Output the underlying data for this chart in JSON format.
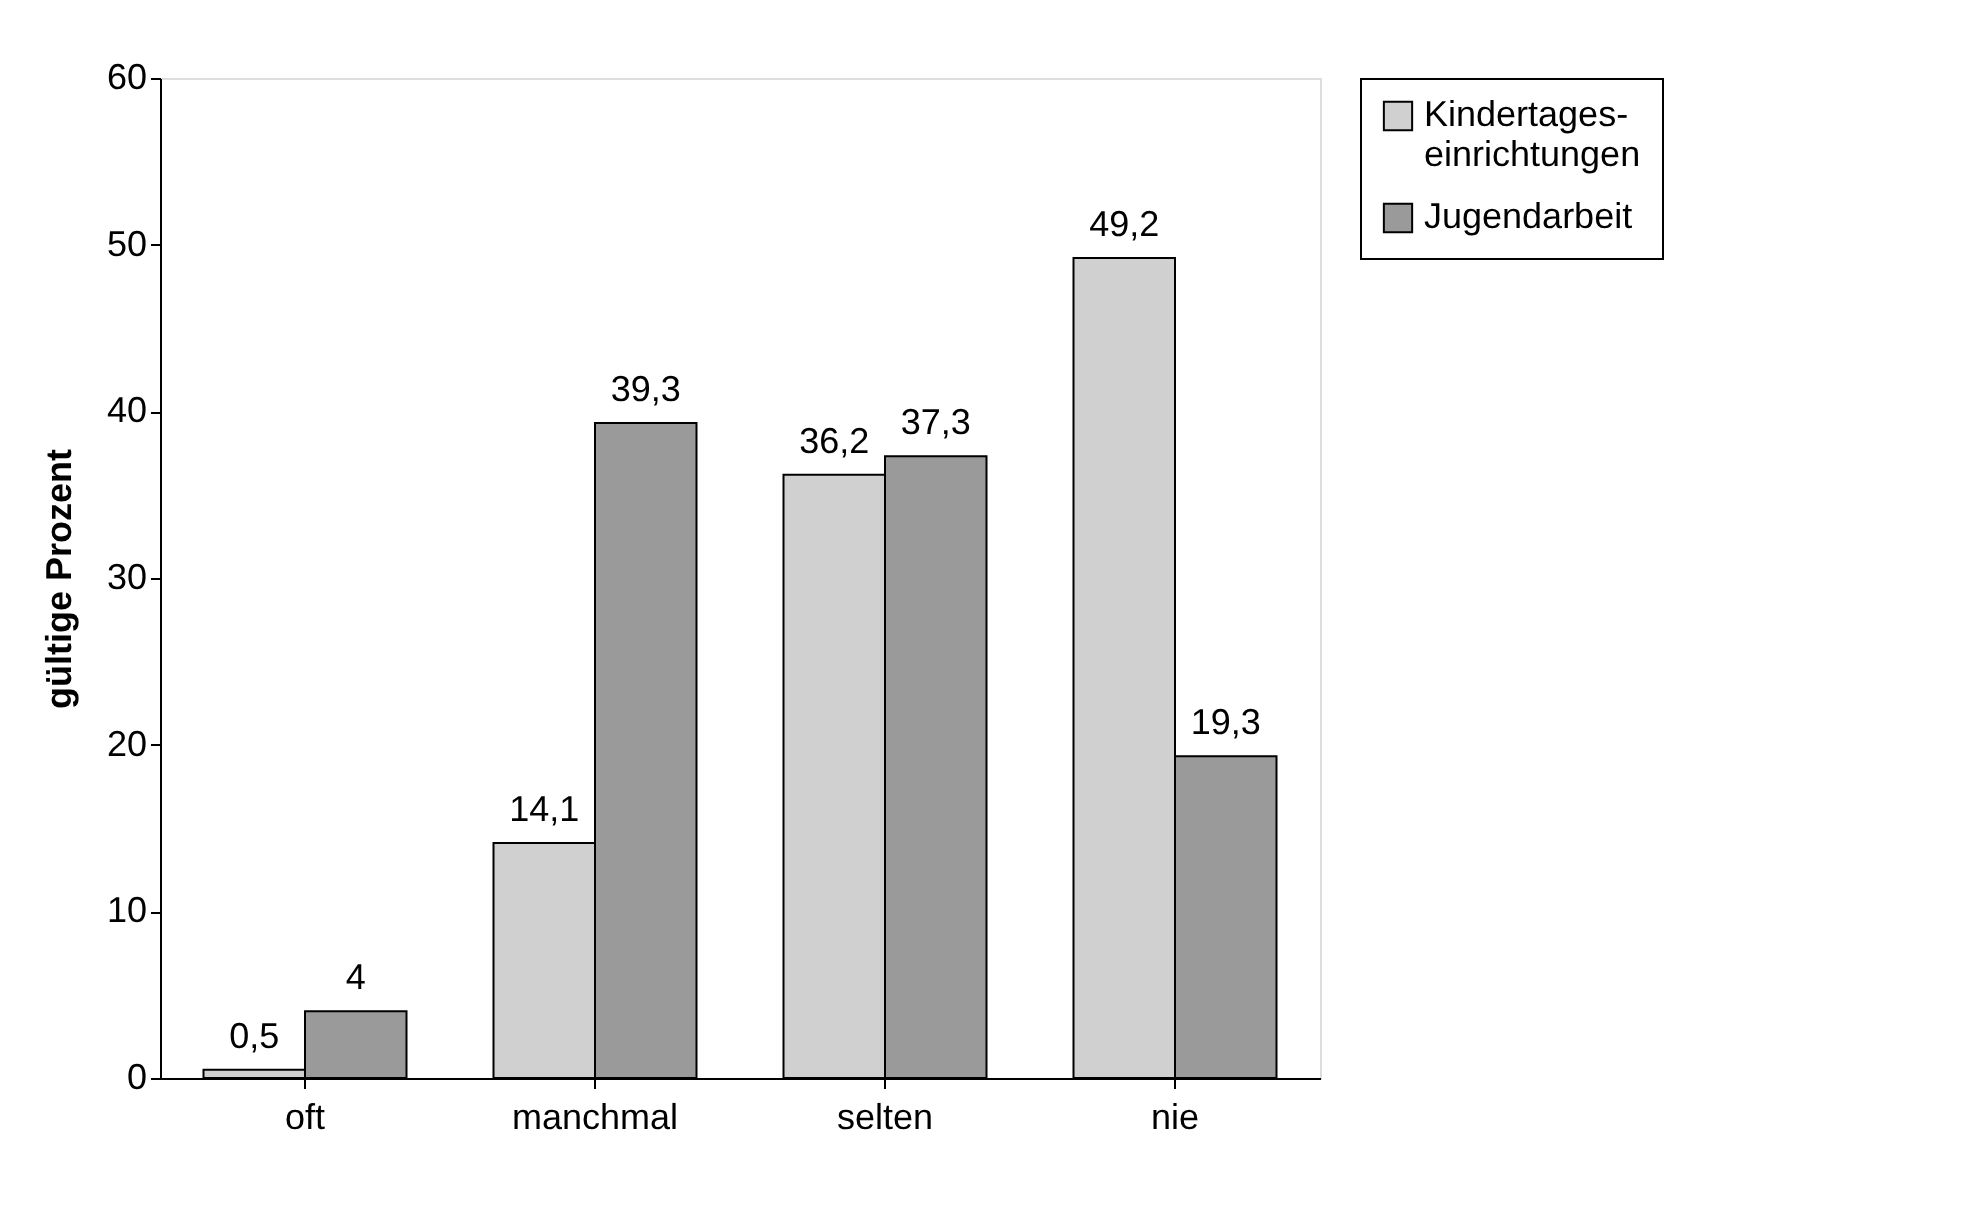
{
  "chart_data": {
    "type": "bar",
    "ylabel": "gültige Prozent",
    "categories": [
      "oft",
      "manchmal",
      "selten",
      "nie"
    ],
    "series": [
      {
        "name": "Kindertages-einrichtungen",
        "color": "#d0d0d0",
        "values": [
          0.5,
          14.1,
          36.2,
          49.2
        ],
        "value_labels": [
          "0,5",
          "14,1",
          "36,2",
          "49,2"
        ]
      },
      {
        "name": "Jugendarbeit",
        "color": "#9a9a9a",
        "values": [
          4,
          39.3,
          37.3,
          19.3
        ],
        "value_labels": [
          "4",
          "39,3",
          "37,3",
          "19,3"
        ]
      }
    ],
    "ylim": [
      0,
      60
    ],
    "yticks": [
      0,
      10,
      20,
      30,
      40,
      50,
      60
    ],
    "grid": false,
    "legend": "right"
  }
}
